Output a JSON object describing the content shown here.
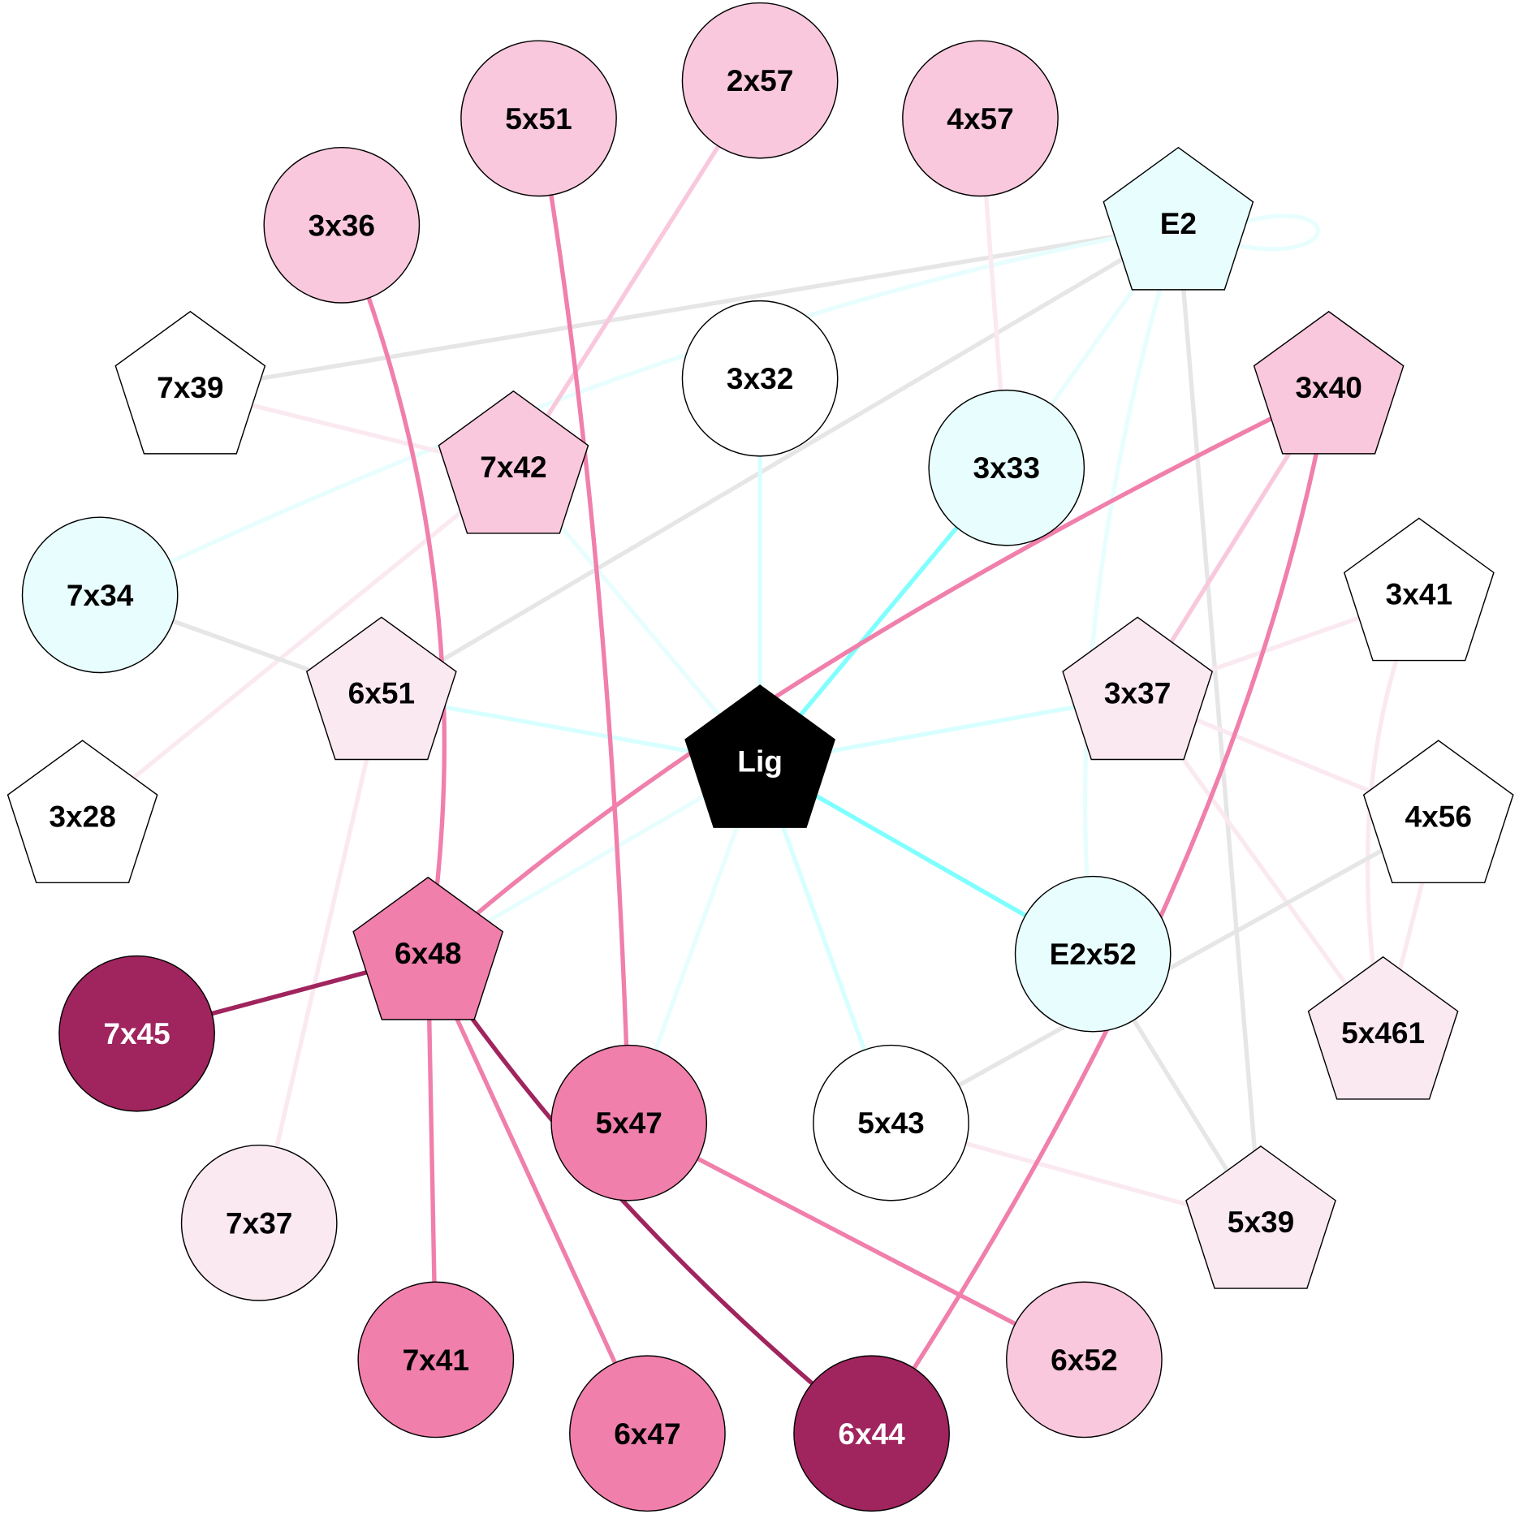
{
  "colors": {
    "white": "#ffffff",
    "cyan_light": "#e8fefe",
    "pink_very_light": "#fbe9f1",
    "pink_light": "#f9c8dc",
    "pink_mid": "#f07fab",
    "pink_dark": "#a0245e",
    "black": "#000000",
    "edge_cyan_strong": "#80ffff",
    "edge_cyan_light": "#d8ffff",
    "edge_cyan_faint": "#e8fefe",
    "edge_grey": "#e6e6e6",
    "edge_pink_faint": "#fbe9f1",
    "edge_pink_light": "#f9c8dc",
    "edge_pink_mid": "#f07fab",
    "edge_pink_dark": "#a0245e"
  },
  "nodes": [
    {
      "id": "5x51",
      "shape": "circle",
      "fill": "pink_light",
      "text": "black"
    },
    {
      "id": "2x57",
      "shape": "circle",
      "fill": "pink_light",
      "text": "black"
    },
    {
      "id": "4x57",
      "shape": "circle",
      "fill": "pink_light",
      "text": "black"
    },
    {
      "id": "3x36",
      "shape": "circle",
      "fill": "pink_light",
      "text": "black"
    },
    {
      "id": "E2",
      "shape": "pentagon",
      "fill": "cyan_light",
      "text": "black"
    },
    {
      "id": "7x39",
      "shape": "pentagon",
      "fill": "white",
      "text": "black"
    },
    {
      "id": "3x32",
      "shape": "circle",
      "fill": "white",
      "text": "black"
    },
    {
      "id": "3x40",
      "shape": "pentagon",
      "fill": "pink_light",
      "text": "black"
    },
    {
      "id": "7x42",
      "shape": "pentagon",
      "fill": "pink_light",
      "text": "black"
    },
    {
      "id": "3x33",
      "shape": "circle",
      "fill": "cyan_light",
      "text": "black"
    },
    {
      "id": "7x34",
      "shape": "circle",
      "fill": "cyan_light",
      "text": "black"
    },
    {
      "id": "3x41",
      "shape": "pentagon",
      "fill": "white",
      "text": "black"
    },
    {
      "id": "6x51",
      "shape": "pentagon",
      "fill": "pink_very_light",
      "text": "black"
    },
    {
      "id": "3x37",
      "shape": "pentagon",
      "fill": "pink_very_light",
      "text": "black"
    },
    {
      "id": "Lig",
      "shape": "pentagon",
      "fill": "black",
      "text": "white"
    },
    {
      "id": "3x28",
      "shape": "pentagon",
      "fill": "white",
      "text": "black"
    },
    {
      "id": "4x56",
      "shape": "pentagon",
      "fill": "white",
      "text": "black"
    },
    {
      "id": "6x48",
      "shape": "pentagon",
      "fill": "pink_mid",
      "text": "black"
    },
    {
      "id": "E2x52",
      "shape": "circle",
      "fill": "cyan_light",
      "text": "black"
    },
    {
      "id": "7x45",
      "shape": "circle",
      "fill": "pink_dark",
      "text": "white"
    },
    {
      "id": "5x461",
      "shape": "pentagon",
      "fill": "pink_very_light",
      "text": "black"
    },
    {
      "id": "5x47",
      "shape": "circle",
      "fill": "pink_mid",
      "text": "black"
    },
    {
      "id": "5x43",
      "shape": "circle",
      "fill": "white",
      "text": "black"
    },
    {
      "id": "7x37",
      "shape": "circle",
      "fill": "pink_very_light",
      "text": "black"
    },
    {
      "id": "5x39",
      "shape": "pentagon",
      "fill": "pink_very_light",
      "text": "black"
    },
    {
      "id": "7x41",
      "shape": "circle",
      "fill": "pink_mid",
      "text": "black"
    },
    {
      "id": "6x52",
      "shape": "circle",
      "fill": "pink_light",
      "text": "black"
    },
    {
      "id": "6x47",
      "shape": "circle",
      "fill": "pink_mid",
      "text": "black"
    },
    {
      "id": "6x44",
      "shape": "circle",
      "fill": "pink_dark",
      "text": "white"
    }
  ],
  "edges": [
    {
      "s": "E2",
      "t": "E2",
      "color": "edge_cyan_faint"
    },
    {
      "s": "E2",
      "t": "7x39",
      "color": "edge_grey"
    },
    {
      "s": "E2",
      "t": "7x34",
      "color": "edge_cyan_faint"
    },
    {
      "s": "E2",
      "t": "6x51",
      "color": "edge_grey"
    },
    {
      "s": "E2",
      "t": "3x33",
      "color": "edge_cyan_faint"
    },
    {
      "s": "E2",
      "t": "E2x52",
      "color": "edge_cyan_faint"
    },
    {
      "s": "E2",
      "t": "5x39",
      "color": "edge_grey"
    },
    {
      "s": "4x57",
      "t": "3x33",
      "color": "edge_pink_faint"
    },
    {
      "s": "2x57",
      "t": "7x42",
      "color": "edge_pink_light"
    },
    {
      "s": "7x39",
      "t": "7x42",
      "color": "edge_pink_faint"
    },
    {
      "s": "7x42",
      "t": "Lig",
      "color": "edge_cyan_faint"
    },
    {
      "s": "7x42",
      "t": "3x28",
      "color": "edge_pink_faint"
    },
    {
      "s": "3x32",
      "t": "Lig",
      "color": "edge_cyan_light"
    },
    {
      "s": "3x33",
      "t": "Lig",
      "color": "edge_cyan_strong"
    },
    {
      "s": "3x40",
      "t": "3x37",
      "color": "edge_pink_light"
    },
    {
      "s": "3x41",
      "t": "3x37",
      "color": "edge_pink_faint"
    },
    {
      "s": "3x41",
      "t": "5x461",
      "color": "edge_pink_faint"
    },
    {
      "s": "7x34",
      "t": "6x51",
      "color": "edge_grey"
    },
    {
      "s": "6x51",
      "t": "Lig",
      "color": "edge_cyan_light"
    },
    {
      "s": "6x51",
      "t": "7x37",
      "color": "edge_pink_faint"
    },
    {
      "s": "3x37",
      "t": "Lig",
      "color": "edge_cyan_light"
    },
    {
      "s": "3x37",
      "t": "4x56",
      "color": "edge_pink_faint"
    },
    {
      "s": "3x37",
      "t": "5x461",
      "color": "edge_pink_faint"
    },
    {
      "s": "Lig",
      "t": "E2x52",
      "color": "edge_cyan_strong"
    },
    {
      "s": "Lig",
      "t": "6x48",
      "color": "edge_cyan_faint"
    },
    {
      "s": "Lig",
      "t": "5x47",
      "color": "edge_cyan_faint"
    },
    {
      "s": "Lig",
      "t": "5x43",
      "color": "edge_cyan_light"
    },
    {
      "s": "4x56",
      "t": "5x43",
      "color": "edge_grey"
    },
    {
      "s": "4x56",
      "t": "5x461",
      "color": "edge_pink_faint"
    },
    {
      "s": "E2x52",
      "t": "5x39",
      "color": "edge_grey"
    },
    {
      "s": "5x43",
      "t": "5x39",
      "color": "edge_pink_faint"
    },
    {
      "s": "5x51",
      "t": "5x47",
      "color": "edge_pink_mid"
    },
    {
      "s": "3x36",
      "t": "6x48",
      "color": "edge_pink_mid"
    },
    {
      "s": "3x40",
      "t": "6x48",
      "color": "edge_pink_mid"
    },
    {
      "s": "3x40",
      "t": "6x44",
      "color": "edge_pink_mid"
    },
    {
      "s": "6x48",
      "t": "7x45",
      "color": "edge_pink_dark"
    },
    {
      "s": "6x48",
      "t": "7x41",
      "color": "edge_pink_mid"
    },
    {
      "s": "6x48",
      "t": "6x47",
      "color": "edge_pink_mid"
    },
    {
      "s": "6x48",
      "t": "6x44",
      "color": "edge_pink_dark"
    },
    {
      "s": "5x47",
      "t": "6x52",
      "color": "edge_pink_mid"
    }
  ]
}
